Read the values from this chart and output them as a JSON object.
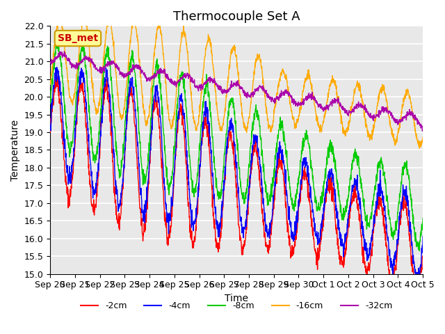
{
  "title": "Thermocouple Set A",
  "xlabel": "Time",
  "ylabel": "Temperature",
  "ylim": [
    15.0,
    22.0
  ],
  "yticks": [
    15.0,
    15.5,
    16.0,
    16.5,
    17.0,
    17.5,
    18.0,
    18.5,
    19.0,
    19.5,
    20.0,
    20.5,
    21.0,
    21.5,
    22.0
  ],
  "xtick_labels": [
    "Sep 20",
    "Sep 21",
    "Sep 22",
    "Sep 23",
    "Sep 24",
    "Sep 25",
    "Sep 26",
    "Sep 27",
    "Sep 28",
    "Sep 29",
    "Sep 30",
    "Oct 1",
    "Oct 2",
    "Oct 3",
    "Oct 4",
    "Oct 5"
  ],
  "line_colors": [
    "#ff0000",
    "#0000ff",
    "#00cc00",
    "#ffaa00",
    "#aa00aa"
  ],
  "line_labels": [
    "-2cm",
    "-4cm",
    "-8cm",
    "-16cm",
    "-32cm"
  ],
  "annotation_text": "SB_met",
  "annotation_color": "#cc0000",
  "annotation_bg": "#ffff99",
  "annotation_border": "#cc9900",
  "bg_color": "#e8e8e8",
  "grid_color": "#ffffff",
  "title_fontsize": 13,
  "axis_fontsize": 10,
  "tick_fontsize": 9
}
